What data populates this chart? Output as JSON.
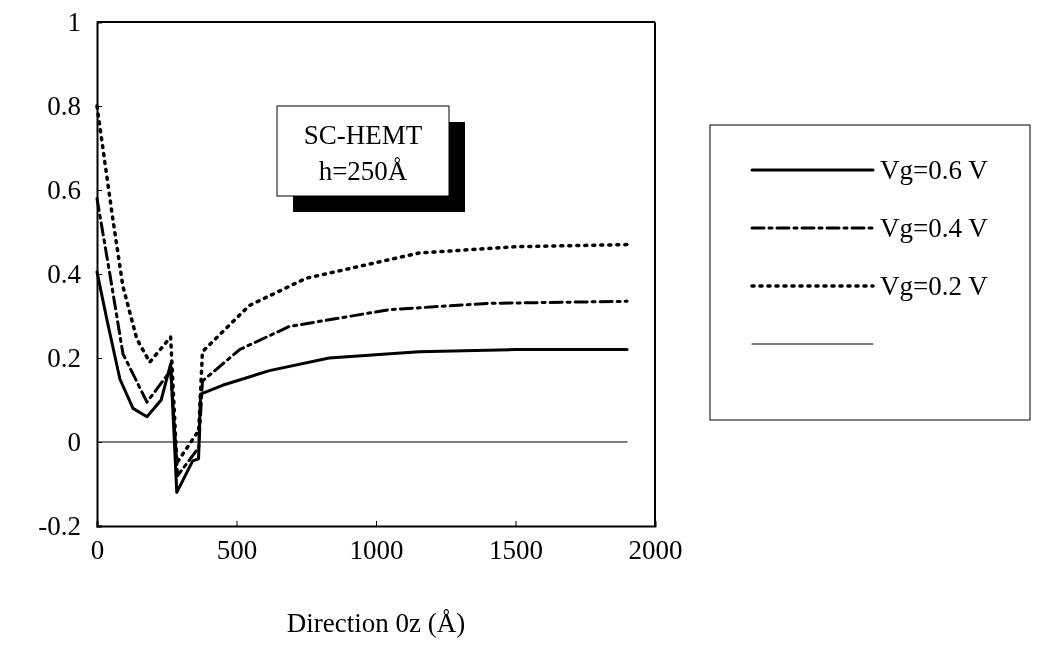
{
  "chart_data": {
    "type": "line",
    "xlabel": "Direction 0z (Å)",
    "xlim": [
      0,
      2000
    ],
    "ylim": [
      -0.2,
      1
    ],
    "xticks": [
      0,
      500,
      1000,
      1500,
      2000
    ],
    "yticks": [
      -0.2,
      0,
      0.2,
      0.4,
      0.6,
      0.8,
      1
    ],
    "grid": false,
    "legend": "right",
    "marker": "none",
    "annotations": [
      "SC-HEMT\nh=250Å"
    ],
    "series": [
      {
        "name": "Vg=0.6 V",
        "color": "#000000",
        "line_style": "solid",
        "x": [
          0,
          36,
          82,
          129,
          179,
          230,
          264,
          286,
          343,
          364,
          371,
          450,
          618,
          832,
          1154,
          1500,
          1900
        ],
        "values": [
          0.405,
          0.29,
          0.15,
          0.08,
          0.06,
          0.1,
          0.186,
          -0.12,
          -0.045,
          -0.04,
          0.114,
          0.135,
          0.17,
          0.2,
          0.215,
          0.22,
          0.22
        ]
      },
      {
        "name": "Vg=0.4 V",
        "color": "#000000",
        "line_style": "dashdot",
        "x": [
          0,
          46,
          93,
          179,
          264,
          289,
          357,
          364,
          378,
          511,
          689,
          1046,
          1400,
          1900
        ],
        "values": [
          0.58,
          0.4,
          0.21,
          0.095,
          0.17,
          -0.08,
          -0.02,
          -0.02,
          0.145,
          0.22,
          0.275,
          0.315,
          0.33,
          0.335
        ]
      },
      {
        "name": "Vg=0.2 V",
        "color": "#000000",
        "line_style": "dotted",
        "x": [
          0,
          21,
          57,
          93,
          143,
          189,
          264,
          286,
          357,
          364,
          378,
          546,
          750,
          1154,
          1500,
          1900
        ],
        "values": [
          0.8,
          0.7,
          0.53,
          0.37,
          0.245,
          0.19,
          0.25,
          -0.05,
          0.02,
          0.02,
          0.215,
          0.325,
          0.39,
          0.45,
          0.465,
          0.47
        ]
      },
      {
        "color": "#000000",
        "line_style": "solid",
        "x": [
          0,
          1900
        ],
        "values": [
          0,
          0
        ]
      }
    ]
  }
}
